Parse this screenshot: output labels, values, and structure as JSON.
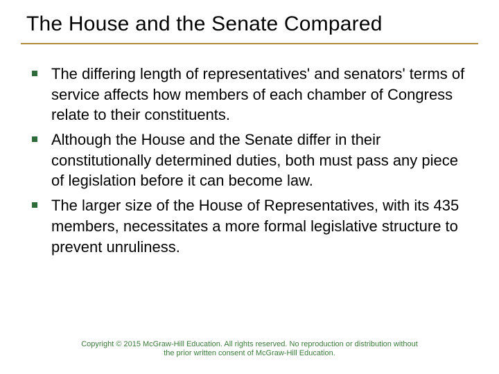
{
  "slide": {
    "title": "The House and the Senate Compared",
    "title_fontsize": 30,
    "underline_color": "#b08a3a",
    "bullet_color": "#2e6b3a",
    "bullets": [
      "The differing length of representatives' and senators' terms of service affects how members of each chamber of Congress relate to their constituents.",
      "Although the House and the Senate differ in their constitutionally determined duties, both must pass any piece of legislation before it can become law.",
      "The larger size of the House of Representatives, with its 435 members, necessitates a more formal legislative structure to prevent unruliness."
    ],
    "body_fontsize": 22,
    "footer": "Copyright © 2015 McGraw-Hill Education. All rights reserved. No reproduction or distribution without the prior written consent of McGraw-Hill Education.",
    "footer_color": "#3a7a3a",
    "footer_fontsize": 11,
    "background_color": "#ffffff"
  }
}
